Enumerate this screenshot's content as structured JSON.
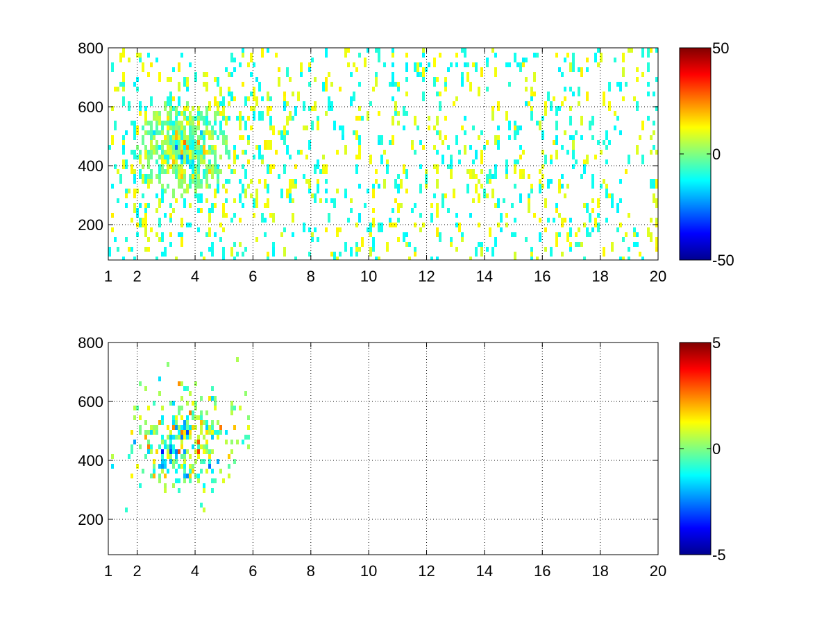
{
  "chart_data": [
    {
      "type": "heatmap",
      "title": "",
      "xlabel": "",
      "ylabel": "",
      "xlim": [
        1,
        20
      ],
      "ylim": [
        80,
        800
      ],
      "x_ticks": [
        1,
        2,
        4,
        6,
        8,
        10,
        12,
        14,
        16,
        18,
        20
      ],
      "y_ticks": [
        200,
        400,
        600,
        800
      ],
      "grid": true,
      "colormap": "jet",
      "colorbar": {
        "min": -50,
        "max": 50,
        "ticks": [
          50,
          0,
          -50
        ],
        "placement": "right"
      },
      "value_range": [
        -50,
        50
      ],
      "description": "sparse scattered values across full x-range; dense cluster near x 2-6, y 300-650"
    },
    {
      "type": "heatmap",
      "title": "",
      "xlabel": "",
      "ylabel": "",
      "xlim": [
        1,
        20
      ],
      "ylim": [
        80,
        800
      ],
      "x_ticks": [
        1,
        2,
        4,
        6,
        8,
        10,
        12,
        14,
        16,
        18,
        20
      ],
      "y_ticks": [
        200,
        400,
        600,
        800
      ],
      "grid": true,
      "colormap": "jet",
      "colorbar": {
        "min": -5,
        "max": 5,
        "ticks": [
          5,
          0,
          -5
        ],
        "placement": "right"
      },
      "value_range": [
        -5,
        5
      ],
      "description": "values concentrated near x 2-6, y 300-700; nearly empty elsewhere"
    }
  ],
  "colors": {
    "jet": [
      "#00008f",
      "#0000ff",
      "#00ffff",
      "#80ff80",
      "#ffff00",
      "#ff0000",
      "#800000"
    ],
    "axis": "#000000",
    "grid": "#000000",
    "background": "#ffffff"
  }
}
